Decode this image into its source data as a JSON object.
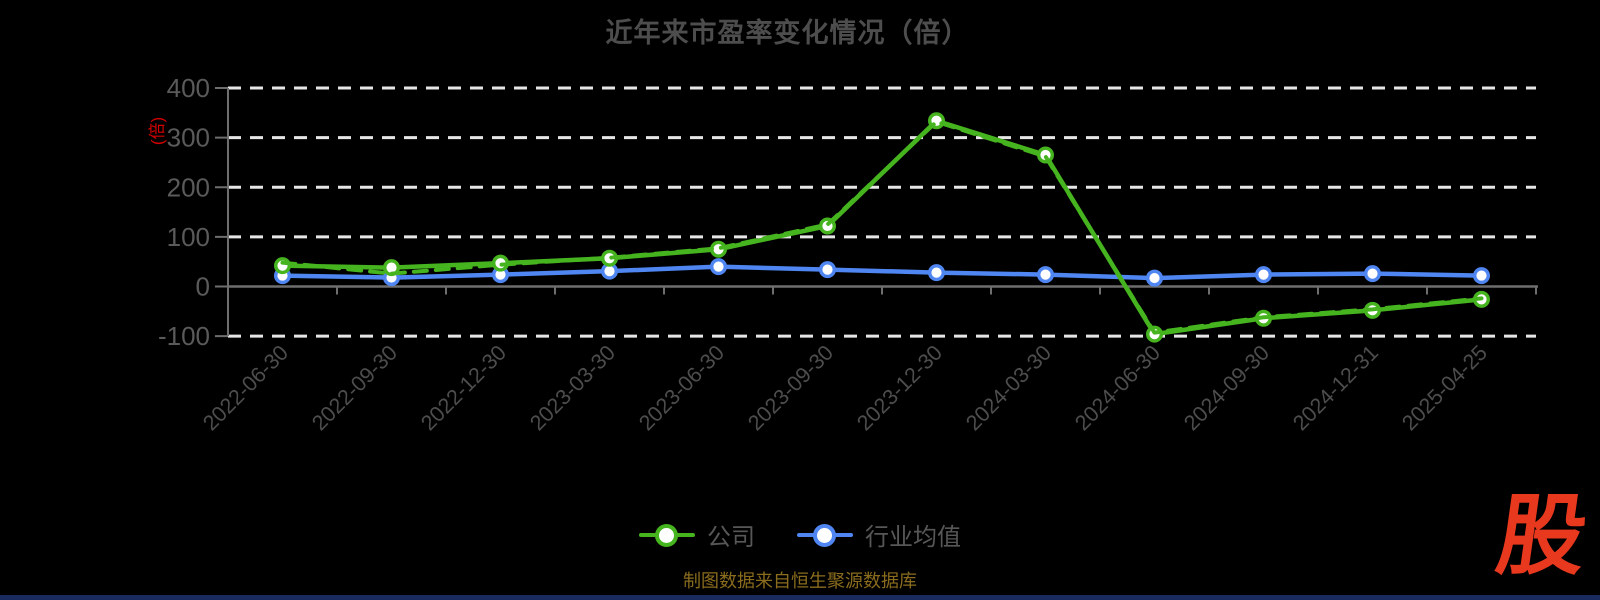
{
  "title": "近年来市盈率变化情况（倍）",
  "y_axis_unit_label": "(倍)",
  "footer_note": "制图数据来自恒生聚源数据库",
  "watermark": "股",
  "colors": {
    "background": "#000000",
    "company": "#45b41f",
    "industry": "#4f86f2",
    "grid": "#e6e6e6",
    "axis": "#6e6e6e",
    "title_text": "#4d4d4d",
    "x_tick_text": "#4d4d4d",
    "y_tick_text": "#5a5a5a",
    "legend_text": "#575757",
    "unit_label": "#d40000",
    "footer_text": "#8a6c1e",
    "watermark_red": "#e8391f",
    "bottom_strip": "#182a5e"
  },
  "legend": {
    "items": [
      {
        "label": "公司",
        "color_key": "company"
      },
      {
        "label": "行业均值",
        "color_key": "industry"
      }
    ]
  },
  "chart_data": {
    "type": "line",
    "title": "近年来市盈率变化情况（倍）",
    "categories": [
      "2022-06-30",
      "2022-09-30",
      "2022-12-30",
      "2023-03-30",
      "2023-06-30",
      "2023-09-30",
      "2023-12-30",
      "2024-03-30",
      "2024-06-30",
      "2024-09-30",
      "2024-12-31",
      "2025-04-25"
    ],
    "series": [
      {
        "id": "company",
        "name": "公司",
        "color_key": "company",
        "line_style": "solid",
        "markers": true,
        "values": [
          42,
          38,
          47,
          57,
          75,
          122,
          334,
          265,
          -96,
          -64,
          -48,
          -26
        ]
      },
      {
        "id": "company-dashed-overlay",
        "name": "",
        "color_key": "company",
        "line_style": "dashed",
        "markers": false,
        "values": [
          48,
          26,
          44,
          58,
          77,
          125,
          332,
          262,
          -93,
          -62,
          -46,
          -24
        ]
      },
      {
        "id": "industry",
        "name": "行业均值",
        "color_key": "industry",
        "line_style": "solid",
        "markers": true,
        "values": [
          22,
          18,
          24,
          31,
          40,
          34,
          28,
          24,
          17,
          24,
          26,
          22
        ]
      }
    ],
    "ylim": [
      -100,
      400
    ],
    "yticks": [
      400,
      300,
      200,
      100,
      0,
      -100
    ],
    "grid": "horizontal-dashed",
    "legend_position": "bottom-center",
    "x_label_rotation": -45
  }
}
